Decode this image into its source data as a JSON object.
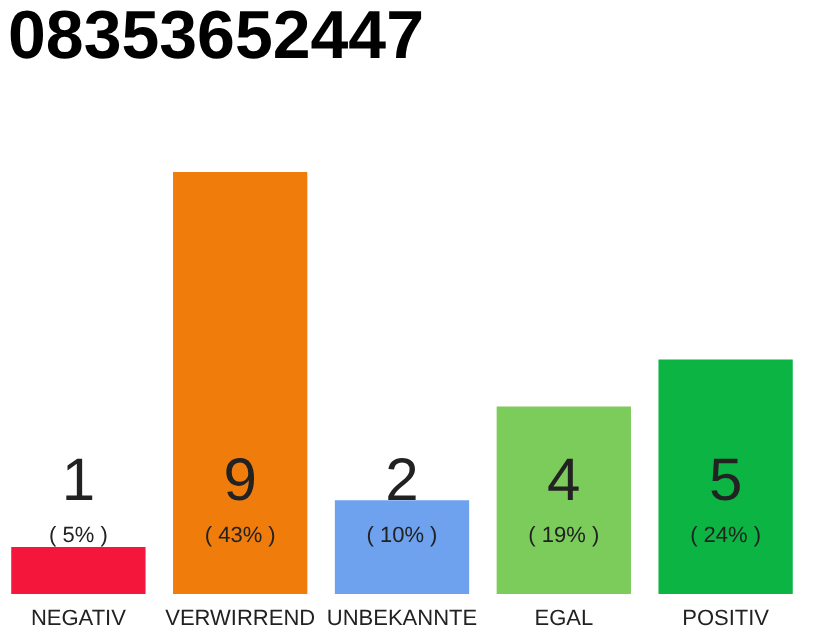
{
  "chart_data": {
    "type": "bar",
    "title": "08353652447",
    "categories": [
      "NEGATIV",
      "VERWIRREND",
      "UNBEKANNTE",
      "EGAL",
      "POSITIV"
    ],
    "values": [
      1,
      9,
      2,
      4,
      5
    ],
    "colors": [
      "#f5163c",
      "#f07c0c",
      "#6ea2ee",
      "#7ccc5c",
      "#0cb444"
    ],
    "ylim": [
      0,
      9
    ],
    "data_labels": true,
    "grid": false,
    "annotations": [
      "( 5% )",
      "( 43% )",
      "( 10% )",
      "( 19% )",
      "( 24% )"
    ]
  }
}
